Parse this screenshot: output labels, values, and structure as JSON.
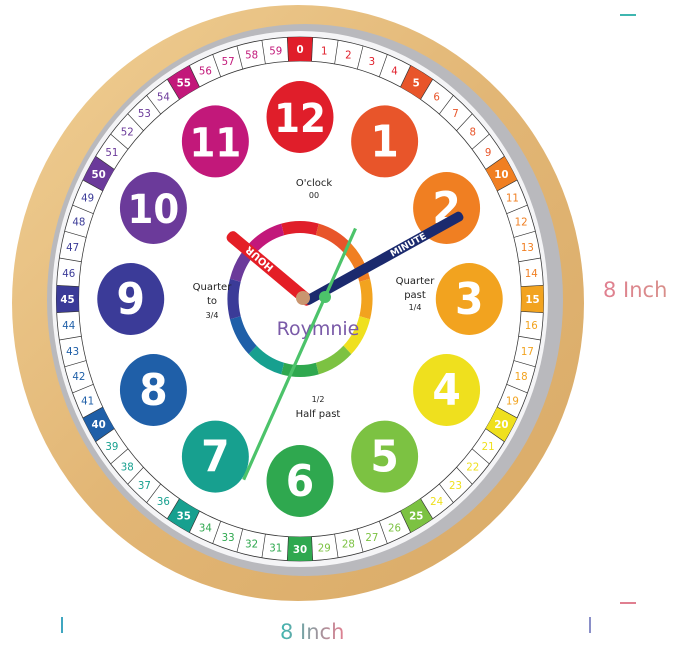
{
  "product": {
    "brand": "Roymnie",
    "hour_numerals": [
      "12",
      "1",
      "2",
      "3",
      "4",
      "5",
      "6",
      "7",
      "8",
      "9",
      "10",
      "11"
    ],
    "hour_colors": [
      "#e01e2a",
      "#e8552a",
      "#f07f22",
      "#f2a31f",
      "#efe01e",
      "#7cc242",
      "#2fa84f",
      "#17a08f",
      "#1f5fa8",
      "#3b3b98",
      "#6b3a9a",
      "#c2187a"
    ],
    "minute_labels": [
      "0",
      "1",
      "2",
      "3",
      "4",
      "5",
      "6",
      "7",
      "8",
      "9",
      "10",
      "11",
      "12",
      "13",
      "14",
      "15",
      "16",
      "17",
      "18",
      "19",
      "20",
      "21",
      "22",
      "23",
      "24",
      "25",
      "26",
      "27",
      "28",
      "29",
      "30",
      "31",
      "32",
      "33",
      "34",
      "35",
      "36",
      "37",
      "38",
      "39",
      "40",
      "41",
      "42",
      "43",
      "44",
      "45",
      "46",
      "47",
      "48",
      "49",
      "50",
      "51",
      "52",
      "53",
      "54",
      "55",
      "56",
      "57",
      "58",
      "59"
    ],
    "labels": {
      "oclock": "O'clock",
      "oclock_sub": "00",
      "quarter_past_1": "Quarter",
      "quarter_past_2": "past",
      "quarter_past_sub": "1/4",
      "quarter_to_1": "Quarter",
      "quarter_to_2": "to",
      "quarter_to_sub": "3/4",
      "half_past_sub": "1/2",
      "half_past": "Half past"
    },
    "hands": {
      "hour_label": "HOUR",
      "minute_label": "MINUTE"
    },
    "frame_color": "#e6bd7e"
  },
  "dimensions": {
    "width": "8 Inch",
    "height": "8 Inch"
  }
}
